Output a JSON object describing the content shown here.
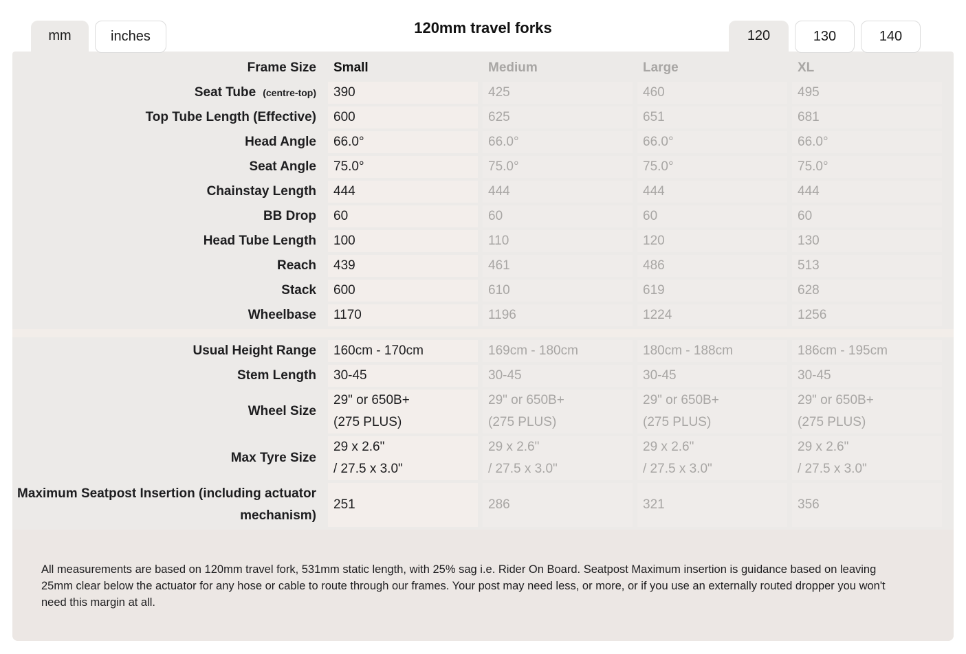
{
  "header": {
    "title": "120mm travel forks",
    "unit_tabs": [
      {
        "label": "mm",
        "active": true
      },
      {
        "label": "inches",
        "active": false
      }
    ],
    "travel_tabs": [
      {
        "label": "120",
        "active": true
      },
      {
        "label": "130",
        "active": false
      },
      {
        "label": "140",
        "active": false
      }
    ]
  },
  "table": {
    "header_label": "Frame Size",
    "columns": [
      "Small",
      "Medium",
      "Large",
      "XL"
    ],
    "sections": [
      {
        "rows": [
          {
            "label": "Seat Tube",
            "label_suffix": "(centre-top)",
            "values": [
              "390",
              "425",
              "460",
              "495"
            ]
          },
          {
            "label": "Top Tube Length (Effective)",
            "values": [
              "600",
              "625",
              "651",
              "681"
            ]
          },
          {
            "label": "Head Angle",
            "values": [
              "66.0°",
              "66.0°",
              "66.0°",
              "66.0°"
            ]
          },
          {
            "label": "Seat Angle",
            "values": [
              "75.0°",
              "75.0°",
              "75.0°",
              "75.0°"
            ]
          },
          {
            "label": "Chainstay Length",
            "values": [
              "444",
              "444",
              "444",
              "444"
            ]
          },
          {
            "label": "BB Drop",
            "values": [
              "60",
              "60",
              "60",
              "60"
            ]
          },
          {
            "label": "Head Tube Length",
            "values": [
              "100",
              "110",
              "120",
              "130"
            ]
          },
          {
            "label": "Reach",
            "values": [
              "439",
              "461",
              "486",
              "513"
            ]
          },
          {
            "label": "Stack",
            "values": [
              "600",
              "610",
              "619",
              "628"
            ]
          },
          {
            "label": "Wheelbase",
            "values": [
              "1170",
              "1196",
              "1224",
              "1256"
            ]
          }
        ]
      },
      {
        "rows": [
          {
            "label": "Usual Height Range",
            "values": [
              "160cm - 170cm",
              "169cm - 180cm",
              "180cm - 188cm",
              "186cm - 195cm"
            ]
          },
          {
            "label": "Stem Length",
            "values": [
              "30-45",
              "30-45",
              "30-45",
              "30-45"
            ]
          },
          {
            "label": "Wheel Size",
            "values": [
              "29\" or 650B+\n(275 PLUS)",
              "29\" or 650B+\n(275 PLUS)",
              "29\" or 650B+\n(275 PLUS)",
              "29\" or 650B+\n(275 PLUS)"
            ]
          },
          {
            "label": "Max Tyre Size",
            "values": [
              "29 x 2.6\"\n/ 27.5 x 3.0\"",
              "29 x 2.6\"\n/ 27.5 x 3.0\"",
              "29 x 2.6\"\n/ 27.5 x 3.0\"",
              "29 x 2.6\"\n/ 27.5 x 3.0\""
            ]
          },
          {
            "label": "Maximum Seatpost Insertion (including actuator mechanism)",
            "values": [
              "251",
              "286",
              "321",
              "356"
            ]
          }
        ]
      }
    ],
    "footnote": "All measurements are based on 120mm travel fork, 531mm static length, with 25% sag i.e. Rider On Board. Seatpost Maximum insertion is guidance based on leaving 25mm clear below the actuator for any hose or cable to route through our frames. Your post may need less, or more, or if you use an externally routed dropper you won't need this margin at all."
  },
  "colors": {
    "table_bg": "#eceae8",
    "cell_bg": "#efecea",
    "cell_active_bg": "#f3eeeb",
    "divider_bg": "#f2ede9",
    "footnote_bg": "#ece7e4",
    "text_dark": "#1d1d1f",
    "text_grey": "#a8a6a4",
    "tab_border": "#dcdcdc"
  }
}
